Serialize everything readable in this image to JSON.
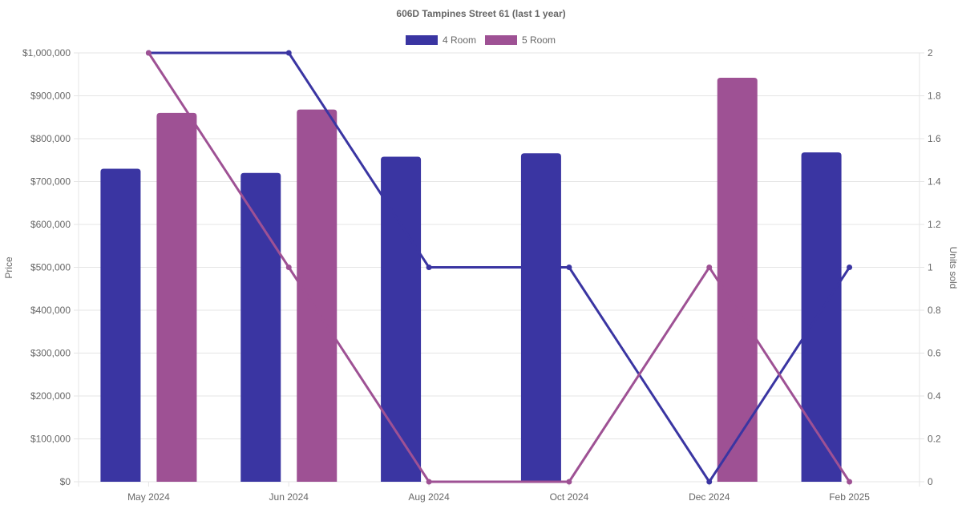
{
  "chart_data": {
    "type": "bar",
    "title": "606D Tampines Street 61 (last 1 year)",
    "categories": [
      "May 2024",
      "Jun 2024",
      "Aug 2024",
      "Oct 2024",
      "Dec 2024",
      "Feb 2025"
    ],
    "ylabel": "Price",
    "y2label": "Units sold",
    "ylim": [
      0,
      1000000
    ],
    "y2lim": [
      0,
      2
    ],
    "yticks": [
      "$0",
      "$100,000",
      "$200,000",
      "$300,000",
      "$400,000",
      "$500,000",
      "$600,000",
      "$700,000",
      "$800,000",
      "$900,000",
      "$1,000,000"
    ],
    "y2ticks": [
      "0",
      "0.2",
      "0.4",
      "0.6",
      "0.8",
      "1",
      "1.2",
      "1.4",
      "1.6",
      "1.8",
      "2"
    ],
    "grid": true,
    "legend": "top-center",
    "series": [
      {
        "name": "4 Room",
        "color": "#3a35a2",
        "price_values": [
          730000,
          720000,
          758000,
          766000,
          null,
          768000
        ],
        "units_sold": [
          2,
          2,
          1,
          1,
          0,
          1
        ]
      },
      {
        "name": "5 Room",
        "color": "#9e5194",
        "price_values": [
          860000,
          868000,
          null,
          null,
          942000,
          null
        ],
        "units_sold": [
          2,
          1,
          0,
          0,
          1,
          0
        ]
      }
    ]
  }
}
